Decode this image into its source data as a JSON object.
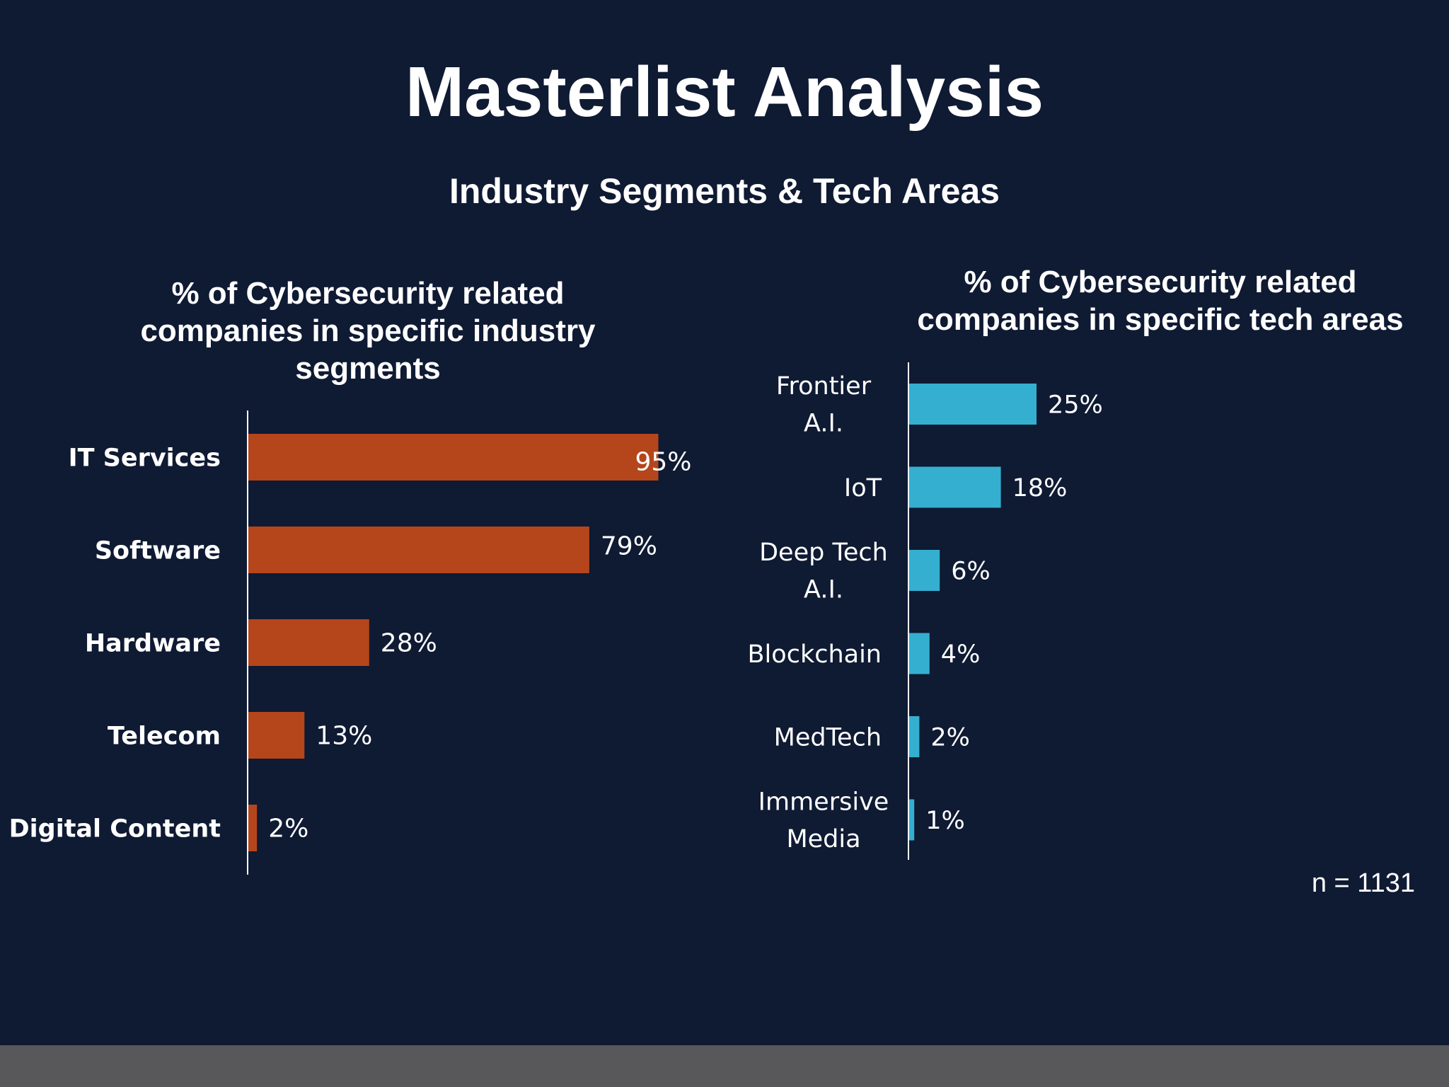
{
  "title": "Masterlist Analysis",
  "subtitle": "Industry Segments & Tech Areas",
  "colors": {
    "background": "#0f1a33",
    "left_bar": "#b5461b",
    "right_bar": "#35afd0",
    "footer": "#58585a"
  },
  "note": "n = 1131",
  "chart_data": [
    {
      "type": "bar",
      "orientation": "horizontal",
      "title": "% of Cybersecurity related companies in specific industry segments",
      "categories": [
        "IT Services",
        "Software",
        "Hardware",
        "Telecom",
        "Digital Content"
      ],
      "values": [
        95,
        79,
        28,
        13,
        2
      ],
      "labels": [
        "95%",
        "79%",
        "28%",
        "13%",
        "2%"
      ],
      "unit": "%",
      "grid": false
    },
    {
      "type": "bar",
      "orientation": "horizontal",
      "title": "% of Cybersecurity related companies in specific tech areas",
      "categories": [
        "Frontier A.I.",
        "IoT",
        "Deep Tech A.I.",
        "Blockchain",
        "MedTech",
        "Immersive Media"
      ],
      "values": [
        25,
        18,
        6,
        4,
        2,
        1
      ],
      "labels": [
        "25%",
        "18%",
        "6%",
        "4%",
        "2%",
        "1%"
      ],
      "unit": "%",
      "grid": false
    }
  ]
}
